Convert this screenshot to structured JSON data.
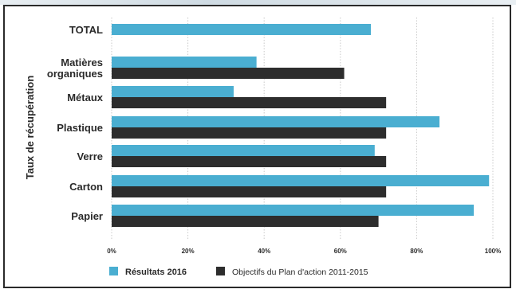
{
  "chart_data": {
    "type": "bar",
    "orientation": "horizontal",
    "title": "",
    "ylabel": "Taux de récupération",
    "xlabel": "",
    "categories": [
      "TOTAL",
      "Matières organiques",
      "Métaux",
      "Plastique",
      "Verre",
      "Carton",
      "Papier"
    ],
    "category_lines": [
      [
        "TOTAL"
      ],
      [
        "Matières",
        "organiques"
      ],
      [
        "Métaux"
      ],
      [
        "Plastique"
      ],
      [
        "Verre"
      ],
      [
        "Carton"
      ],
      [
        "Papier"
      ]
    ],
    "series": [
      {
        "name": "Résultats 2016",
        "color": "#4aaed1",
        "values": [
          68,
          38,
          32,
          86,
          69,
          99,
          95
        ]
      },
      {
        "name": "Objectifs du Plan d'action 2011-2015",
        "color": "#2d2d2d",
        "values": [
          null,
          61,
          72,
          72,
          72,
          72,
          70
        ]
      }
    ],
    "xlim": [
      0,
      100
    ],
    "xticks": [
      "0%",
      "20%",
      "40%",
      "60%",
      "80%",
      "100%"
    ],
    "grid": true,
    "legend_position": "bottom"
  }
}
